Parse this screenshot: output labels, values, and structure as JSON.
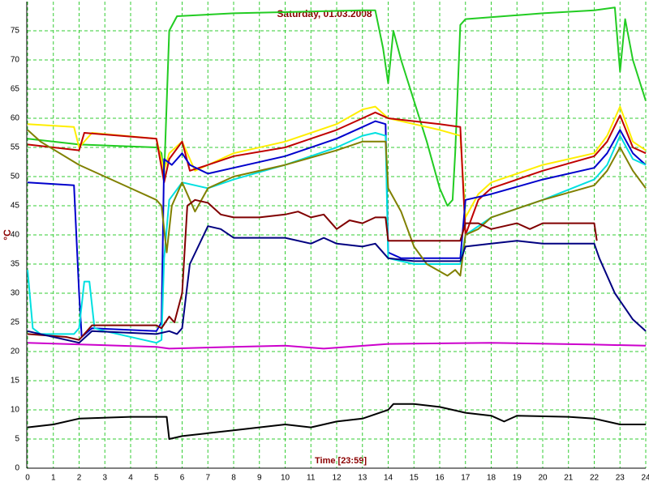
{
  "chart_data": {
    "type": "line",
    "title": "Saturday, 01.03.2008",
    "x_label": "Time [23:59]",
    "y_label": "°C",
    "xlim": [
      0,
      24
    ],
    "ylim": [
      0,
      80
    ],
    "xticks": [
      0,
      1,
      2,
      3,
      4,
      5,
      6,
      7,
      8,
      9,
      10,
      11,
      12,
      13,
      14,
      15,
      16,
      17,
      18,
      19,
      20,
      21,
      22,
      23,
      24
    ],
    "yticks": [
      0,
      5,
      10,
      15,
      20,
      25,
      30,
      35,
      40,
      45,
      50,
      55,
      60,
      65,
      70,
      75
    ],
    "grid": true,
    "series": [
      {
        "color": "#22cc22",
        "x": [
          0,
          2,
          5,
          5.2,
          5.3,
          5.5,
          5.8,
          8,
          13,
          13.5,
          13.8,
          14,
          14.2,
          14.5,
          15,
          15.5,
          16,
          16.3,
          16.5,
          16.6,
          16.8,
          17,
          20,
          22,
          22.8,
          23,
          23.2,
          23.5,
          24
        ],
        "values": [
          56.5,
          55.5,
          55,
          54,
          50,
          75,
          77.5,
          78,
          78.5,
          78.5,
          72,
          66,
          75,
          70,
          63,
          56,
          48,
          45,
          46,
          54,
          76,
          77,
          78,
          78.5,
          79,
          68,
          77,
          70,
          63
        ]
      },
      {
        "color": "#ffee00",
        "x": [
          0,
          1.8,
          2,
          2.5,
          5,
          5.3,
          5.5,
          6,
          6.5,
          7,
          8,
          10,
          12,
          13,
          13.5,
          14,
          15,
          16,
          16.8,
          17,
          17.5,
          18,
          20,
          22,
          22.5,
          23,
          23.5,
          24
        ],
        "values": [
          59,
          58.5,
          55,
          57.5,
          56.5,
          51,
          54,
          56,
          51,
          52,
          54,
          56,
          59,
          61.5,
          62,
          60,
          59,
          58,
          57,
          43,
          47,
          49,
          52,
          54,
          57,
          62,
          56,
          54.5
        ]
      },
      {
        "color": "#c00000",
        "x": [
          0,
          2,
          2.2,
          5,
          5.3,
          5.5,
          6,
          6.3,
          7,
          8,
          10,
          12,
          13,
          13.5,
          14,
          15,
          16,
          16.8,
          17,
          17.5,
          18,
          20,
          22,
          22.5,
          23,
          23.5,
          24
        ],
        "values": [
          55.5,
          54.5,
          57.5,
          56.5,
          49,
          53,
          56,
          51,
          52,
          53.5,
          55,
          58,
          60,
          61,
          60,
          59.5,
          59,
          58.5,
          40,
          46,
          48,
          51,
          53.5,
          56,
          60.5,
          55,
          54
        ]
      },
      {
        "color": "#0000cc",
        "x": [
          0,
          1.8,
          2,
          2.1,
          2.5,
          5,
          5.2,
          5.3,
          5.6,
          6,
          6.3,
          7,
          8,
          10,
          12,
          13,
          13.5,
          13.9,
          14,
          14.5,
          16.8,
          17,
          18,
          20,
          22,
          22.5,
          23,
          23.5,
          24
        ],
        "values": [
          49,
          48.5,
          30,
          22.5,
          24,
          23.5,
          25,
          53,
          52,
          54,
          52,
          50.5,
          51.5,
          53.5,
          56.5,
          58.5,
          59.5,
          59,
          37,
          36,
          36,
          46,
          47,
          49.5,
          51.5,
          54,
          58,
          54,
          52
        ]
      },
      {
        "color": "#00e0e0",
        "x": [
          0,
          0.2,
          0.5,
          1.8,
          2,
          2.2,
          2.4,
          2.6,
          3,
          5,
          5.2,
          5.3,
          5.5,
          6,
          7,
          8,
          10,
          12,
          13,
          13.5,
          13.9,
          14,
          15,
          16.8,
          17,
          18,
          20,
          22,
          22.5,
          23,
          23.5,
          24
        ],
        "values": [
          34,
          24,
          23,
          23,
          24,
          32,
          32,
          24,
          23.5,
          21.5,
          22,
          36,
          46,
          49,
          48,
          49.5,
          52,
          55,
          57,
          57.5,
          57,
          36,
          35,
          35,
          40,
          43,
          46,
          49.5,
          52,
          57,
          53,
          52
        ]
      },
      {
        "color": "#808000",
        "x": [
          0,
          0.5,
          2,
          3,
          4,
          5,
          5.2,
          5.4,
          5.6,
          6,
          6.5,
          7,
          8,
          10,
          12,
          13,
          13.9,
          14,
          14.5,
          15,
          15.5,
          16.3,
          16.6,
          16.8,
          17,
          17.5,
          18,
          20,
          22,
          22.5,
          23,
          23.5,
          24
        ],
        "values": [
          58,
          56,
          52,
          50,
          48,
          46,
          45,
          37,
          45,
          49,
          44,
          48,
          50,
          52,
          54.5,
          56,
          56,
          48,
          44,
          38,
          35,
          33,
          34,
          33,
          40,
          41,
          43,
          46,
          48.5,
          51,
          55,
          51,
          48
        ]
      },
      {
        "color": "#800000",
        "x": [
          0,
          1.5,
          2,
          2.5,
          5,
          5.2,
          5.5,
          5.7,
          6,
          6.2,
          6.5,
          7,
          7.5,
          8,
          9,
          10,
          10.5,
          11,
          11.5,
          12,
          12.5,
          13,
          13.5,
          13.9,
          14,
          16.8,
          17,
          17.5,
          18,
          19,
          19.5,
          20,
          22,
          22.1
        ],
        "values": [
          23,
          22.5,
          22,
          24.5,
          24.5,
          24,
          26,
          25,
          30,
          45,
          46,
          45.5,
          43.5,
          43,
          43,
          43.5,
          44,
          43,
          43.5,
          41,
          42.5,
          42,
          43,
          43,
          39,
          39,
          42,
          42,
          41,
          42,
          41,
          42,
          42,
          39
        ]
      },
      {
        "color": "#000080",
        "x": [
          0,
          1,
          2,
          2.5,
          5,
          5.5,
          5.8,
          6,
          6.3,
          7,
          7.5,
          8,
          10,
          11,
          11.5,
          12,
          13,
          13.5,
          14,
          15,
          16.8,
          17,
          18,
          19,
          20,
          22,
          22.2,
          22.8,
          23.5,
          24
        ],
        "values": [
          23.5,
          22.5,
          21.5,
          23.5,
          23,
          23.5,
          23,
          24,
          35,
          41.5,
          41,
          39.5,
          39.5,
          38.5,
          39.5,
          38.5,
          38,
          38.5,
          36,
          35.5,
          35.5,
          38,
          38.5,
          39,
          38.5,
          38.5,
          36,
          30,
          25.5,
          23.5
        ]
      },
      {
        "color": "#cc00cc",
        "x": [
          0,
          5,
          5.5,
          8,
          10,
          11.5,
          14,
          18,
          22,
          24
        ],
        "values": [
          21.5,
          20.8,
          20.5,
          20.8,
          21,
          20.5,
          21.3,
          21.5,
          21.2,
          21
        ]
      },
      {
        "color": "#000000",
        "x": [
          0,
          1,
          2,
          4,
          5.4,
          5.5,
          6,
          7,
          8,
          10,
          11,
          12,
          13,
          14,
          14.2,
          15,
          16,
          17,
          18,
          18.5,
          19,
          21,
          22,
          23,
          24
        ],
        "values": [
          7,
          7.5,
          8.5,
          8.8,
          8.8,
          5,
          5.5,
          6,
          6.5,
          7.5,
          7,
          8,
          8.5,
          10,
          11,
          11,
          10.5,
          9.5,
          9,
          8,
          9,
          8.8,
          8.5,
          7.5,
          7.5
        ]
      }
    ]
  }
}
